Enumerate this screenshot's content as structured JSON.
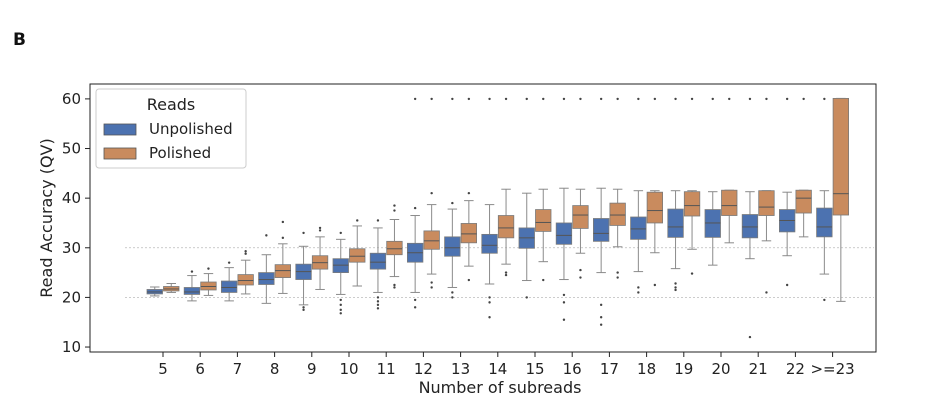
{
  "panel_label": "B",
  "chart_data": {
    "type": "box",
    "title": "",
    "xlabel": "Number of subreads",
    "ylabel": "Read Accuracy (QV)",
    "ylim": [
      9,
      63
    ],
    "yticks": [
      10,
      20,
      30,
      40,
      50,
      60
    ],
    "reference_lines": [
      20,
      30
    ],
    "grid": false,
    "legend": {
      "title": "Reads",
      "placement": "top-left",
      "entries": [
        {
          "name": "Unpolished",
          "color": "#4C72B0"
        },
        {
          "name": "Polished",
          "color": "#C98B5E"
        }
      ]
    },
    "categories": [
      "5",
      "6",
      "7",
      "8",
      "9",
      "10",
      "11",
      "12",
      "13",
      "14",
      "15",
      "16",
      "17",
      "18",
      "19",
      "20",
      "21",
      "22",
      ">=23"
    ],
    "series": [
      {
        "name": "Unpolished",
        "color": "#4C72B0",
        "boxes": [
          {
            "whislo": 20.3,
            "q1": 20.7,
            "med": 21.1,
            "q3": 21.6,
            "whishi": 22.1,
            "fliers": []
          },
          {
            "whislo": 19.3,
            "q1": 20.6,
            "med": 21.1,
            "q3": 22.0,
            "whishi": 24.4,
            "fliers": [
              25.2
            ]
          },
          {
            "whislo": 19.3,
            "q1": 21.0,
            "med": 22.0,
            "q3": 23.3,
            "whishi": 26.0,
            "fliers": [
              27.0
            ]
          },
          {
            "whislo": 18.8,
            "q1": 22.6,
            "med": 23.6,
            "q3": 25.0,
            "whishi": 28.6,
            "fliers": [
              32.5
            ]
          },
          {
            "whislo": 18.5,
            "q1": 23.6,
            "med": 25.2,
            "q3": 26.7,
            "whishi": 30.3,
            "fliers": [
              17.5,
              18.0,
              33.0
            ]
          },
          {
            "whislo": 20.6,
            "q1": 25.0,
            "med": 26.5,
            "q3": 27.8,
            "whishi": 31.7,
            "fliers": [
              16.8,
              17.5,
              18.5,
              19.5,
              33.0
            ]
          },
          {
            "whislo": 21.0,
            "q1": 25.7,
            "med": 27.1,
            "q3": 28.9,
            "whishi": 34.0,
            "fliers": [
              17.8,
              18.5,
              19.2,
              20.0,
              35.5
            ]
          },
          {
            "whislo": 21.0,
            "q1": 27.1,
            "med": 29.0,
            "q3": 30.9,
            "whishi": 36.5,
            "fliers": [
              60.0,
              18.0,
              19.5,
              38.0
            ]
          },
          {
            "whislo": 22.0,
            "q1": 28.3,
            "med": 30.0,
            "q3": 32.2,
            "whishi": 37.8,
            "fliers": [
              60.0,
              20.0,
              21.0,
              39.0
            ]
          },
          {
            "whislo": 22.7,
            "q1": 28.9,
            "med": 30.5,
            "q3": 32.7,
            "whishi": 38.7,
            "fliers": [
              60.0,
              16.0,
              19.0,
              20.0
            ]
          },
          {
            "whislo": 23.4,
            "q1": 29.9,
            "med": 32.0,
            "q3": 34.0,
            "whishi": 41.0,
            "fliers": [
              60.0,
              20.0
            ]
          },
          {
            "whislo": 23.6,
            "q1": 30.7,
            "med": 32.5,
            "q3": 35.0,
            "whishi": 42.0,
            "fliers": [
              60.0,
              15.5,
              19.0,
              20.5
            ]
          },
          {
            "whislo": 25.0,
            "q1": 31.3,
            "med": 32.9,
            "q3": 35.9,
            "whishi": 42.0,
            "fliers": [
              60.0,
              14.5,
              16.0,
              18.5
            ]
          },
          {
            "whislo": 25.2,
            "q1": 31.7,
            "med": 33.8,
            "q3": 36.2,
            "whishi": 41.5,
            "fliers": [
              60.0,
              21.0,
              22.0
            ]
          },
          {
            "whislo": 25.8,
            "q1": 32.1,
            "med": 34.2,
            "q3": 37.8,
            "whishi": 41.5,
            "fliers": [
              60.0,
              21.5,
              22.0,
              22.8
            ]
          },
          {
            "whislo": 26.5,
            "q1": 32.1,
            "med": 35.0,
            "q3": 37.7,
            "whishi": 41.3,
            "fliers": [
              60.0
            ]
          },
          {
            "whislo": 27.8,
            "q1": 32.0,
            "med": 34.2,
            "q3": 36.7,
            "whishi": 41.3,
            "fliers": [
              60.0,
              12.0
            ]
          },
          {
            "whislo": 28.4,
            "q1": 33.2,
            "med": 35.5,
            "q3": 37.7,
            "whishi": 41.2,
            "fliers": [
              60.0,
              22.5
            ]
          },
          {
            "whislo": 24.7,
            "q1": 32.2,
            "med": 34.2,
            "q3": 38.0,
            "whishi": 41.5,
            "fliers": [
              60.0,
              19.5
            ]
          }
        ]
      },
      {
        "name": "Polished",
        "color": "#C98B5E",
        "boxes": [
          {
            "whislo": 21.0,
            "q1": 21.3,
            "med": 21.7,
            "q3": 22.2,
            "whishi": 22.8,
            "fliers": []
          },
          {
            "whislo": 20.4,
            "q1": 21.5,
            "med": 22.2,
            "q3": 23.1,
            "whishi": 24.8,
            "fliers": [
              25.8
            ]
          },
          {
            "whislo": 20.7,
            "q1": 22.5,
            "med": 23.4,
            "q3": 24.6,
            "whishi": 27.5,
            "fliers": [
              28.8,
              29.3
            ]
          },
          {
            "whislo": 20.8,
            "q1": 24.0,
            "med": 25.4,
            "q3": 26.6,
            "whishi": 30.8,
            "fliers": [
              32.0,
              35.2
            ]
          },
          {
            "whislo": 21.6,
            "q1": 25.7,
            "med": 27.0,
            "q3": 28.4,
            "whishi": 32.2,
            "fliers": [
              33.5,
              34.0
            ]
          },
          {
            "whislo": 22.3,
            "q1": 27.1,
            "med": 28.3,
            "q3": 29.8,
            "whishi": 34.4,
            "fliers": [
              35.5
            ]
          },
          {
            "whislo": 24.2,
            "q1": 28.6,
            "med": 29.8,
            "q3": 31.3,
            "whishi": 35.7,
            "fliers": [
              22.0,
              22.5,
              37.5,
              38.5
            ]
          },
          {
            "whislo": 24.7,
            "q1": 29.7,
            "med": 31.4,
            "q3": 33.4,
            "whishi": 38.7,
            "fliers": [
              60.0,
              22.0,
              23.0,
              41.0
            ]
          },
          {
            "whislo": 26.3,
            "q1": 31.0,
            "med": 32.8,
            "q3": 34.9,
            "whishi": 39.5,
            "fliers": [
              60.0,
              23.5,
              41.0
            ]
          },
          {
            "whislo": 26.7,
            "q1": 32.0,
            "med": 34.0,
            "q3": 36.5,
            "whishi": 41.8,
            "fliers": [
              60.0,
              24.5,
              25.0
            ]
          },
          {
            "whislo": 27.2,
            "q1": 33.3,
            "med": 35.1,
            "q3": 37.7,
            "whishi": 41.8,
            "fliers": [
              60.0,
              23.5
            ]
          },
          {
            "whislo": 28.9,
            "q1": 33.9,
            "med": 36.6,
            "q3": 38.5,
            "whishi": 41.8,
            "fliers": [
              60.0,
              24.0,
              25.5
            ]
          },
          {
            "whislo": 30.2,
            "q1": 34.5,
            "med": 36.6,
            "q3": 39.0,
            "whishi": 41.8,
            "fliers": [
              60.0,
              24.0,
              25.0
            ]
          },
          {
            "whislo": 29.0,
            "q1": 35.0,
            "med": 37.5,
            "q3": 41.2,
            "whishi": 41.5,
            "fliers": [
              60.0,
              22.5
            ]
          },
          {
            "whislo": 29.7,
            "q1": 36.4,
            "med": 38.5,
            "q3": 41.3,
            "whishi": 41.5,
            "fliers": [
              60.0,
              24.8
            ]
          },
          {
            "whislo": 31.0,
            "q1": 36.5,
            "med": 38.5,
            "q3": 41.6,
            "whishi": 41.6,
            "fliers": [
              60.0
            ]
          },
          {
            "whislo": 31.4,
            "q1": 36.5,
            "med": 38.2,
            "q3": 41.5,
            "whishi": 41.5,
            "fliers": [
              60.0,
              21.0
            ]
          },
          {
            "whislo": 32.2,
            "q1": 37.0,
            "med": 40.0,
            "q3": 41.6,
            "whishi": 41.6,
            "fliers": [
              60.0
            ]
          },
          {
            "whislo": 19.2,
            "q1": 36.6,
            "med": 40.9,
            "q3": 60.1,
            "whishi": 60.1,
            "fliers": []
          }
        ]
      }
    ]
  }
}
